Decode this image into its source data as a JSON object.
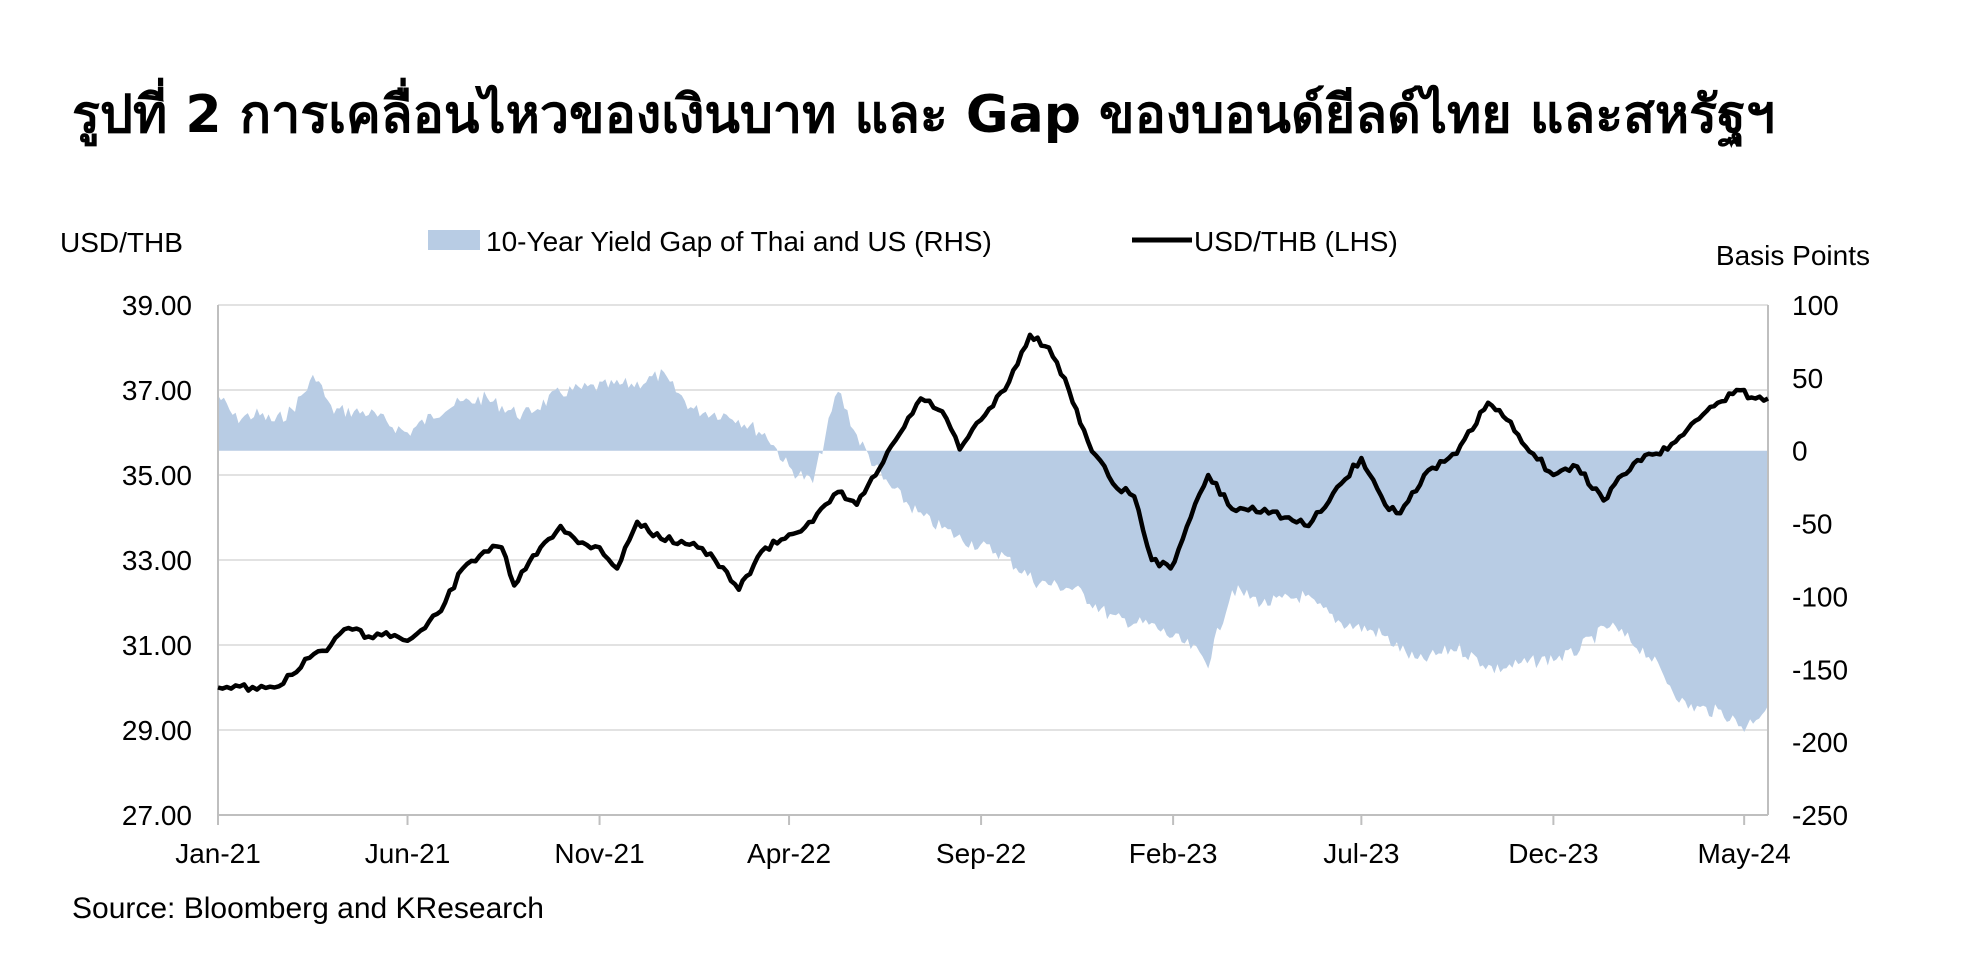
{
  "title": "รูปที่ 2  การเคลื่อนไหวของเงินบาท และ Gap ของบอนด์ยีลด์ไทย และสหรัฐฯ",
  "source": "Source: Bloomberg and KResearch",
  "colors": {
    "gap_fill": "#b8cce4",
    "line": "#000000",
    "grid": "#d9d9d9",
    "axis": "#bfbfbf"
  },
  "chart_data": {
    "type": "line",
    "left_axis": {
      "label": "USD/THB",
      "ylim": [
        27,
        39
      ],
      "ticks": [
        "39.00",
        "37.00",
        "35.00",
        "33.00",
        "31.00",
        "29.00",
        "27.00"
      ]
    },
    "right_axis": {
      "label": "Basis Points",
      "ylim": [
        -250,
        100
      ],
      "ticks": [
        "100",
        "50",
        "0",
        "-50",
        "-100",
        "-150",
        "-200",
        "-250"
      ]
    },
    "x_axis": {
      "range": [
        "2021-01-01",
        "2024-05-20"
      ],
      "ticks": [
        "Jan-21",
        "Jun-21",
        "Nov-21",
        "Apr-22",
        "Sep-22",
        "Feb-23",
        "Jul-23",
        "Dec-23",
        "May-24"
      ]
    },
    "grid": true,
    "legend": "top",
    "series": [
      {
        "name": "10-Year Yield Gap of Thai and US (RHS)",
        "axis": "right",
        "kind": "area",
        "points": [
          [
            "2021-01-01",
            38
          ],
          [
            "2021-01-15",
            22
          ],
          [
            "2021-02-01",
            25
          ],
          [
            "2021-02-15",
            20
          ],
          [
            "2021-03-01",
            28
          ],
          [
            "2021-03-20",
            52
          ],
          [
            "2021-04-01",
            28
          ],
          [
            "2021-05-01",
            26
          ],
          [
            "2021-06-01",
            12
          ],
          [
            "2021-07-01",
            30
          ],
          [
            "2021-08-01",
            36
          ],
          [
            "2021-09-01",
            24
          ],
          [
            "2021-10-01",
            40
          ],
          [
            "2021-11-01",
            44
          ],
          [
            "2021-12-01",
            46
          ],
          [
            "2021-12-20",
            52
          ],
          [
            "2022-01-15",
            28
          ],
          [
            "2022-02-15",
            24
          ],
          [
            "2022-03-15",
            10
          ],
          [
            "2022-04-01",
            -12
          ],
          [
            "2022-04-20",
            -22
          ],
          [
            "2022-05-10",
            42
          ],
          [
            "2022-05-25",
            10
          ],
          [
            "2022-06-15",
            -20
          ],
          [
            "2022-07-15",
            -45
          ],
          [
            "2022-08-15",
            -60
          ],
          [
            "2022-09-15",
            -70
          ],
          [
            "2022-10-15",
            -90
          ],
          [
            "2022-11-15",
            -95
          ],
          [
            "2022-12-15",
            -115
          ],
          [
            "2023-01-15",
            -120
          ],
          [
            "2023-02-15",
            -135
          ],
          [
            "2023-03-01",
            -145
          ],
          [
            "2023-03-20",
            -95
          ],
          [
            "2023-04-15",
            -105
          ],
          [
            "2023-05-15",
            -100
          ],
          [
            "2023-06-15",
            -118
          ],
          [
            "2023-07-15",
            -125
          ],
          [
            "2023-08-15",
            -145
          ],
          [
            "2023-09-15",
            -135
          ],
          [
            "2023-10-15",
            -150
          ],
          [
            "2023-11-15",
            -145
          ],
          [
            "2023-12-15",
            -140
          ],
          [
            "2024-01-15",
            -120
          ],
          [
            "2024-02-15",
            -140
          ],
          [
            "2024-03-15",
            -175
          ],
          [
            "2024-04-15",
            -180
          ],
          [
            "2024-05-01",
            -190
          ],
          [
            "2024-05-20",
            -175
          ]
        ]
      },
      {
        "name": "USD/THB (LHS)",
        "axis": "left",
        "kind": "line",
        "points": [
          [
            "2021-01-01",
            30.0
          ],
          [
            "2021-01-15",
            30.05
          ],
          [
            "2021-02-01",
            29.95
          ],
          [
            "2021-02-15",
            30.0
          ],
          [
            "2021-03-01",
            30.3
          ],
          [
            "2021-03-15",
            30.7
          ],
          [
            "2021-04-01",
            31.0
          ],
          [
            "2021-04-15",
            31.4
          ],
          [
            "2021-05-01",
            31.2
          ],
          [
            "2021-05-15",
            31.3
          ],
          [
            "2021-06-01",
            31.1
          ],
          [
            "2021-06-15",
            31.4
          ],
          [
            "2021-07-01",
            32.0
          ],
          [
            "2021-07-15",
            32.8
          ],
          [
            "2021-08-01",
            33.2
          ],
          [
            "2021-08-15",
            33.3
          ],
          [
            "2021-08-25",
            32.4
          ],
          [
            "2021-09-15",
            33.3
          ],
          [
            "2021-10-01",
            33.8
          ],
          [
            "2021-10-15",
            33.4
          ],
          [
            "2021-11-01",
            33.3
          ],
          [
            "2021-11-15",
            32.8
          ],
          [
            "2021-12-01",
            33.9
          ],
          [
            "2021-12-20",
            33.5
          ],
          [
            "2022-01-15",
            33.4
          ],
          [
            "2022-02-01",
            33.0
          ],
          [
            "2022-02-20",
            32.3
          ],
          [
            "2022-03-10",
            33.2
          ],
          [
            "2022-04-01",
            33.6
          ],
          [
            "2022-04-20",
            33.9
          ],
          [
            "2022-05-10",
            34.6
          ],
          [
            "2022-05-25",
            34.3
          ],
          [
            "2022-06-15",
            35.3
          ],
          [
            "2022-07-15",
            36.8
          ],
          [
            "2022-08-01",
            36.5
          ],
          [
            "2022-08-15",
            35.6
          ],
          [
            "2022-09-01",
            36.3
          ],
          [
            "2022-09-20",
            37.0
          ],
          [
            "2022-10-10",
            38.3
          ],
          [
            "2022-10-25",
            38.0
          ],
          [
            "2022-11-10",
            37.0
          ],
          [
            "2022-11-25",
            35.8
          ],
          [
            "2022-12-15",
            34.8
          ],
          [
            "2023-01-01",
            34.5
          ],
          [
            "2023-01-15",
            33.0
          ],
          [
            "2023-01-30",
            32.8
          ],
          [
            "2023-02-15",
            34.0
          ],
          [
            "2023-03-01",
            35.0
          ],
          [
            "2023-03-20",
            34.2
          ],
          [
            "2023-04-15",
            34.2
          ],
          [
            "2023-05-01",
            34.0
          ],
          [
            "2023-05-20",
            33.8
          ],
          [
            "2023-06-15",
            34.8
          ],
          [
            "2023-07-01",
            35.4
          ],
          [
            "2023-07-20",
            34.3
          ],
          [
            "2023-08-01",
            34.1
          ],
          [
            "2023-08-20",
            35.0
          ],
          [
            "2023-09-15",
            35.5
          ],
          [
            "2023-10-10",
            36.7
          ],
          [
            "2023-10-25",
            36.3
          ],
          [
            "2023-11-15",
            35.5
          ],
          [
            "2023-12-01",
            35.0
          ],
          [
            "2023-12-20",
            35.2
          ],
          [
            "2024-01-10",
            34.4
          ],
          [
            "2024-01-25",
            35.0
          ],
          [
            "2024-02-15",
            35.5
          ],
          [
            "2024-03-01",
            35.6
          ],
          [
            "2024-03-20",
            36.2
          ],
          [
            "2024-04-10",
            36.7
          ],
          [
            "2024-04-25",
            37.0
          ],
          [
            "2024-05-10",
            36.8
          ],
          [
            "2024-05-20",
            36.8
          ]
        ]
      }
    ]
  }
}
